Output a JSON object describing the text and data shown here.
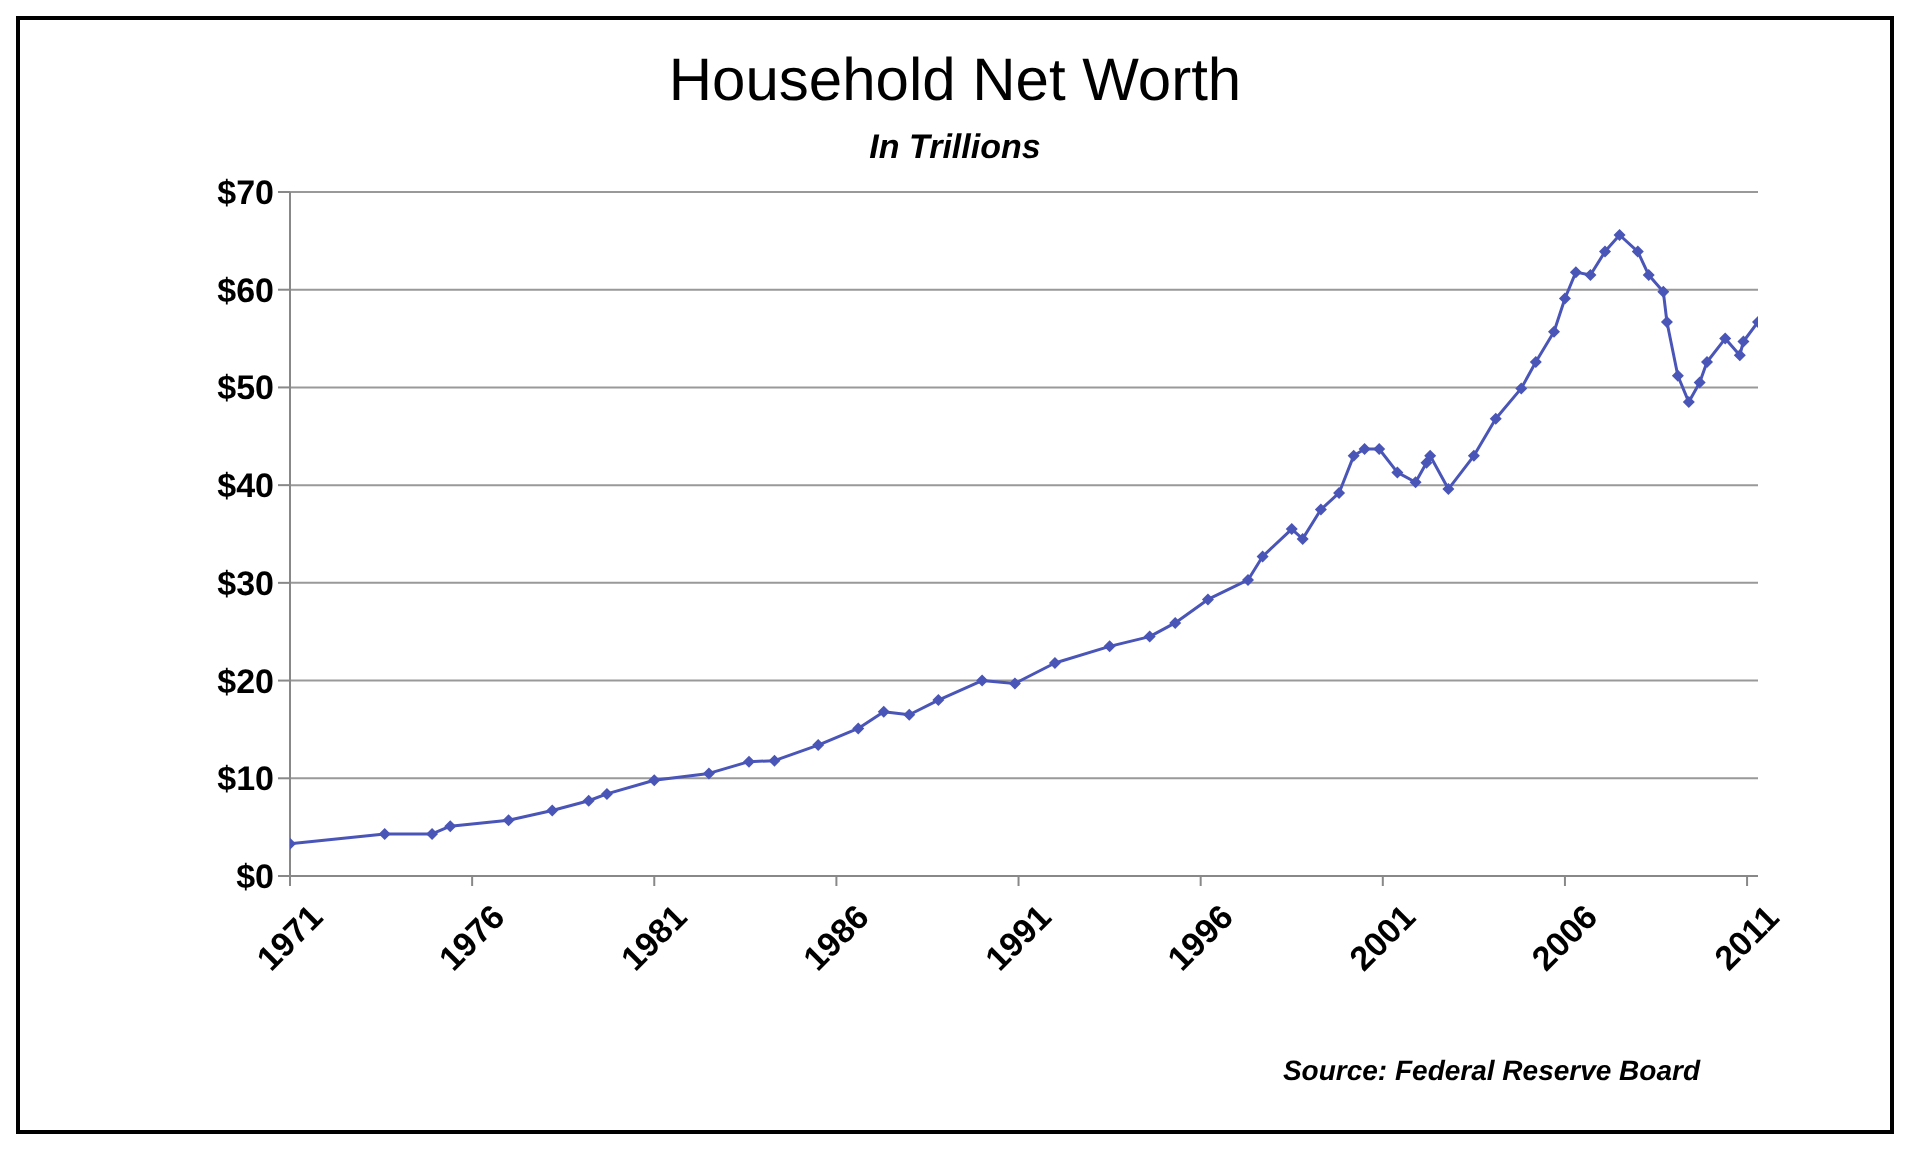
{
  "chart_data": {
    "type": "line",
    "title": "Household Net Worth",
    "subtitle": "In Trillions",
    "annotations": [
      "Source: Federal Reserve Board"
    ],
    "x": [
      1971,
      1973.6,
      1974.9,
      1975.4,
      1977.0,
      1978.2,
      1979.2,
      1979.7,
      1981.0,
      1982.5,
      1983.6,
      1984.3,
      1985.5,
      1986.6,
      1987.3,
      1988.0,
      1988.8,
      1990.0,
      1990.9,
      1992.0,
      1993.5,
      1994.6,
      1995.3,
      1996.2,
      1997.3,
      1997.7,
      1998.5,
      1998.8,
      1999.3,
      1999.8,
      2000.2,
      2000.5,
      2000.9,
      2001.4,
      2001.9,
      2002.2,
      2002.3,
      2002.8,
      2003.5,
      2004.1,
      2004.8,
      2005.2,
      2005.7,
      2006.0,
      2006.3,
      2006.7,
      2007.1,
      2007.5,
      2008.0,
      2008.3,
      2008.7,
      2008.8,
      2009.1,
      2009.4,
      2009.7,
      2009.9,
      2010.4,
      2010.8,
      2010.9,
      2011.3
    ],
    "series": [
      {
        "color": "#4a55b8",
        "values": [
          3.3,
          4.3,
          4.3,
          5.1,
          5.7,
          6.7,
          7.7,
          8.4,
          9.8,
          10.5,
          11.7,
          11.8,
          13.4,
          15.1,
          16.8,
          16.5,
          18.0,
          20.0,
          19.7,
          21.8,
          23.5,
          24.5,
          25.9,
          28.3,
          30.3,
          32.7,
          35.5,
          34.5,
          37.5,
          39.2,
          43.0,
          43.7,
          43.7,
          41.3,
          40.3,
          42.3,
          43.0,
          39.6,
          43.0,
          46.8,
          49.9,
          52.6,
          55.7,
          59.1,
          61.8,
          61.5,
          63.9,
          65.6,
          63.9,
          61.5,
          59.8,
          56.7,
          51.2,
          48.5,
          50.5,
          52.6,
          55.0,
          53.3,
          54.7,
          56.7
        ]
      }
    ],
    "xlim": [
      1971,
      2011.3
    ],
    "xticks": [
      1971,
      1976,
      1981,
      1986,
      1991,
      1996,
      2001,
      2006,
      2011
    ],
    "ylim": [
      0,
      70
    ],
    "yticks": [
      {
        "value": 0,
        "label": "$0"
      },
      {
        "value": 10,
        "label": "$10"
      },
      {
        "value": 20,
        "label": "$20"
      },
      {
        "value": 30,
        "label": "$30"
      },
      {
        "value": 40,
        "label": "$40"
      },
      {
        "value": 50,
        "label": "$50"
      },
      {
        "value": 60,
        "label": "$60"
      },
      {
        "value": 70,
        "label": "$70"
      }
    ],
    "grid": "y",
    "legend": false,
    "marker": "diamond",
    "line_style": "solid"
  }
}
